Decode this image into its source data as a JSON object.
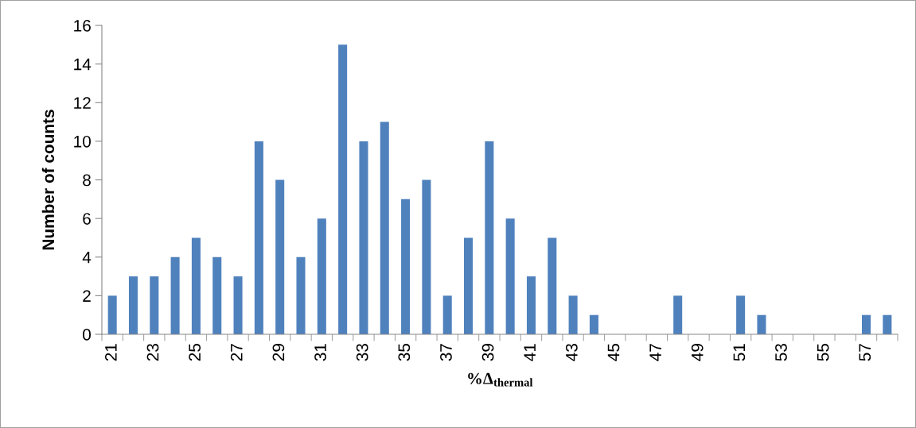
{
  "chart_data": {
    "type": "bar",
    "xlabel": "%Δ$_{thermal}$",
    "ylabel": "Number of counts",
    "categories": [
      "21",
      null,
      "23",
      null,
      "25",
      null,
      "27",
      null,
      "29",
      null,
      "31",
      null,
      "33",
      null,
      "35",
      null,
      "37",
      null,
      "39",
      null,
      "41",
      null,
      "43",
      null,
      "45",
      null,
      "47",
      null,
      "49",
      null,
      "51",
      null,
      "53",
      null,
      "55",
      null,
      "57",
      null
    ],
    "values": [
      2,
      3,
      3,
      4,
      5,
      4,
      3,
      10,
      8,
      4,
      6,
      15,
      10,
      11,
      7,
      8,
      2,
      5,
      10,
      6,
      3,
      5,
      2,
      1,
      0,
      0,
      0,
      2,
      0,
      0,
      2,
      1,
      0,
      0,
      0,
      0,
      1,
      1
    ],
    "color": "#4f81bd",
    "ylim": [
      0,
      16
    ],
    "yticks": [
      0,
      2,
      4,
      6,
      8,
      10,
      12,
      14,
      16
    ],
    "grid": false,
    "legend": false
  }
}
